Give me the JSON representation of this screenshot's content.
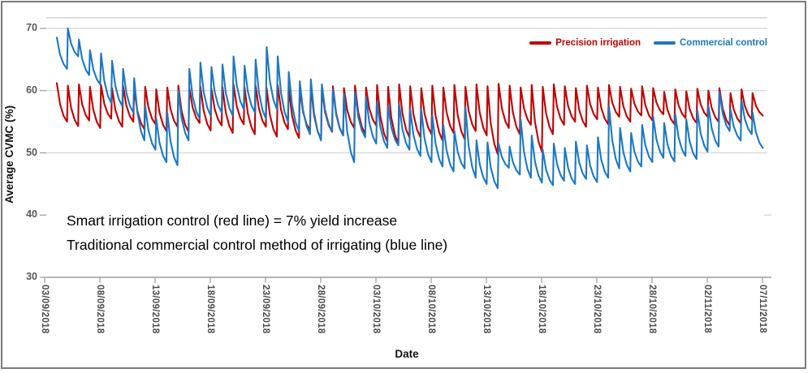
{
  "chart_data": {
    "type": "line",
    "title": "",
    "xlabel": "Date",
    "ylabel": "Average CVMC (%)",
    "ylim": [
      30,
      71.5
    ],
    "grid": "horizontal",
    "gridline_values": [
      70,
      60,
      50
    ],
    "y_ticks": [
      70,
      60,
      50,
      40,
      30
    ],
    "x_ticks": [
      {
        "day": 0,
        "label": "03/09/2018"
      },
      {
        "day": 5,
        "label": "08/09/2018"
      },
      {
        "day": 10,
        "label": "13/09/2018"
      },
      {
        "day": 15,
        "label": "18/09/2018"
      },
      {
        "day": 20,
        "label": "23/09/2018"
      },
      {
        "day": 25,
        "label": "28/09/2018"
      },
      {
        "day": 30,
        "label": "03/10/2018"
      },
      {
        "day": 35,
        "label": "08/10/2018"
      },
      {
        "day": 40,
        "label": "13/10/2018"
      },
      {
        "day": 45,
        "label": "18/10/2018"
      },
      {
        "day": 50,
        "label": "23/10/2018"
      },
      {
        "day": 55,
        "label": "28/10/2018"
      },
      {
        "day": 60,
        "label": "02/11/2018"
      },
      {
        "day": 65,
        "label": "07/11/2018"
      }
    ],
    "legend_position": "top-right",
    "annotations": [
      "Smart irrigation control (red line) = 7% yield increase",
      "Traditional commercial control method of irrigating (blue line)"
    ],
    "series": [
      {
        "name": "Precision irrigation",
        "color": "#C00000",
        "start_day": 1.1,
        "day_step": 1,
        "daily_peaks": [
          61.2,
          60.8,
          61.0,
          60.6,
          60.9,
          60.4,
          60.8,
          60.3,
          60.6,
          60.2,
          60.5,
          60.8,
          60.4,
          60.7,
          60.3,
          60.6,
          61.0,
          60.5,
          60.8,
          60.4,
          60.9,
          60.5,
          60.2,
          60.6,
          60.3,
          60.7,
          60.4,
          60.8,
          60.5,
          60.9,
          60.6,
          61.0,
          60.7,
          60.4,
          60.8,
          60.5,
          60.9,
          60.6,
          61.0,
          60.7,
          61.1,
          60.8,
          60.5,
          60.9,
          60.6,
          61.0,
          60.7,
          60.4,
          60.8,
          60.5,
          60.9,
          60.6,
          60.3,
          60.7,
          60.4,
          59.8,
          60.2,
          59.9,
          60.3,
          60.0,
          60.4,
          59.6,
          60.2,
          59.6
        ],
        "daily_troughs": [
          55.0,
          54.3,
          55.2,
          54.0,
          55.5,
          54.2,
          55.0,
          53.8,
          54.6,
          53.5,
          54.2,
          53.4,
          54.8,
          53.6,
          54.4,
          53.2,
          54.6,
          53.0,
          54.2,
          52.6,
          53.8,
          52.4,
          53.6,
          52.2,
          53.4,
          52.8,
          54.0,
          53.0,
          54.4,
          51.8,
          51.5,
          52.5,
          52.5,
          53.0,
          52.0,
          53.2,
          52.2,
          53.5,
          52.8,
          49.8,
          54.0,
          53.0,
          54.5,
          50.2,
          53.0,
          54.5,
          55.0,
          54.2,
          55.4,
          54.6,
          55.8,
          55.0,
          56.0,
          55.2,
          56.2,
          54.6,
          55.6,
          54.8,
          55.8,
          55.0,
          54.4,
          54.8,
          55.4,
          56.0
        ]
      },
      {
        "name": "Commercial control",
        "color": "#1C78C4",
        "start_day": 1.1,
        "day_step": 1,
        "daily_peaks": [
          68.5,
          70.0,
          68.2,
          66.5,
          66.0,
          64.8,
          63.5,
          62.0,
          57.5,
          55.5,
          56.5,
          60.0,
          63.5,
          64.5,
          63.8,
          64.2,
          65.5,
          64.0,
          65.0,
          67.0,
          65.5,
          63.0,
          61.5,
          61.8,
          61.0,
          60.2,
          59.5,
          59.8,
          59.0,
          58.2,
          57.5,
          57.8,
          57.0,
          57.0,
          56.0,
          54.5,
          53.5,
          57.3,
          52.0,
          51.7,
          51.5,
          51.0,
          55.4,
          52.8,
          50.5,
          51.5,
          50.8,
          51.8,
          51.2,
          52.5,
          57.5,
          54.0,
          53.2,
          54.5,
          55.8,
          54.8,
          56.2,
          55.4,
          56.8,
          57.6,
          59.8,
          57.0,
          58.5,
          56.5
        ],
        "daily_troughs": [
          63.5,
          65.5,
          62.5,
          61.0,
          58.0,
          57.5,
          56.5,
          52.0,
          50.5,
          48.5,
          48.0,
          52.0,
          55.5,
          56.0,
          56.5,
          56.0,
          57.0,
          56.5,
          55.5,
          57.0,
          55.0,
          53.5,
          53.0,
          52.0,
          53.5,
          52.8,
          48.5,
          52.5,
          51.5,
          50.8,
          51.2,
          50.5,
          49.5,
          48.5,
          47.8,
          47.0,
          47.5,
          46.0,
          45.0,
          44.3,
          47.6,
          46.5,
          46.0,
          45.2,
          44.8,
          45.5,
          45.0,
          45.8,
          45.3,
          46.0,
          47.5,
          47.0,
          47.8,
          48.5,
          49.2,
          48.6,
          49.5,
          49.0,
          50.2,
          51.0,
          53.5,
          52.0,
          53.0,
          50.8
        ]
      }
    ]
  }
}
